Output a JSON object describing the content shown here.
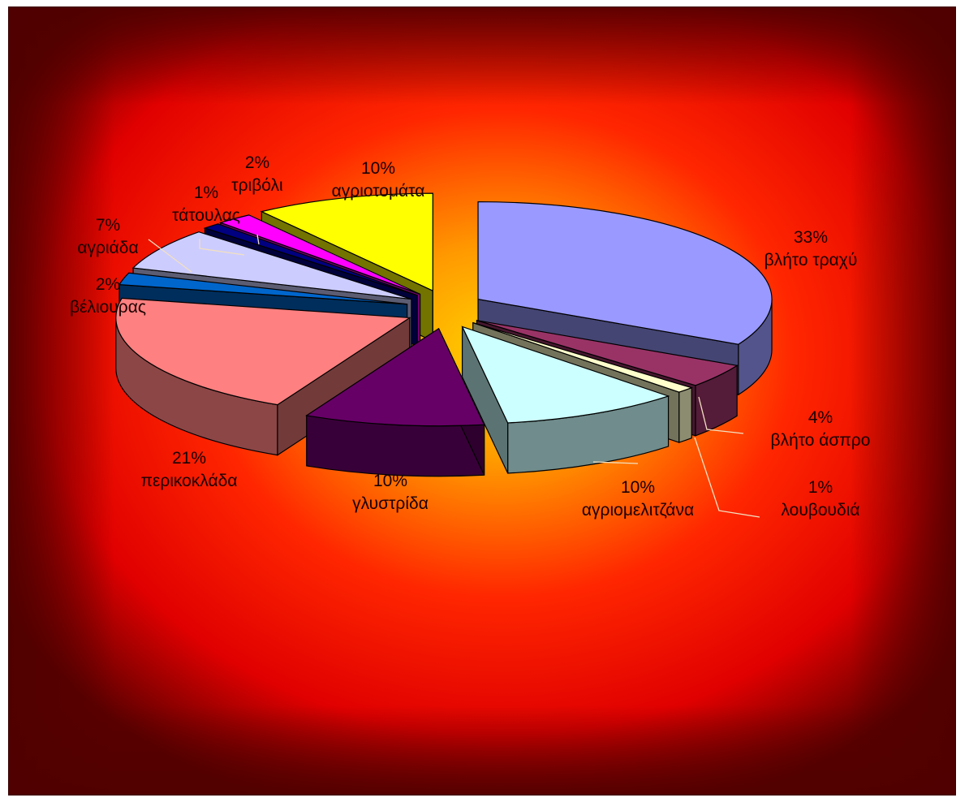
{
  "chart_data": {
    "type": "pie",
    "style": "3d-exploded",
    "title": "",
    "legend": "none",
    "slices": [
      {
        "name": "βλήτο τραχύ",
        "value": 33,
        "label": "33%",
        "color": "#9999ff"
      },
      {
        "name": "βλήτο άσπρο",
        "value": 4,
        "label": "4%",
        "color": "#993366"
      },
      {
        "name": "λουβουδιά",
        "value": 1,
        "label": "1%",
        "color": "#ffffcc"
      },
      {
        "name": "αγριομελιτζάνα",
        "value": 10,
        "label": "10%",
        "color": "#ccffff"
      },
      {
        "name": "γλυστρίδα",
        "value": 10,
        "label": "10%",
        "color": "#660066"
      },
      {
        "name": "περικοκλάδα",
        "value": 21,
        "label": "21%",
        "color": "#ff8080"
      },
      {
        "name": "βέλιουρας",
        "value": 2,
        "label": "2%",
        "color": "#0066cc"
      },
      {
        "name": "αγριάδα",
        "value": 7,
        "label": "7%",
        "color": "#ccccff"
      },
      {
        "name": "τάτουλας",
        "value": 1,
        "label": "1%",
        "color": "#000080"
      },
      {
        "name": "τριβόλι",
        "value": 2,
        "label": "2%",
        "color": "#ff00ff"
      },
      {
        "name": "αγριοτομάτα",
        "value": 10,
        "label": "10%",
        "color": "#ffff00"
      }
    ]
  }
}
